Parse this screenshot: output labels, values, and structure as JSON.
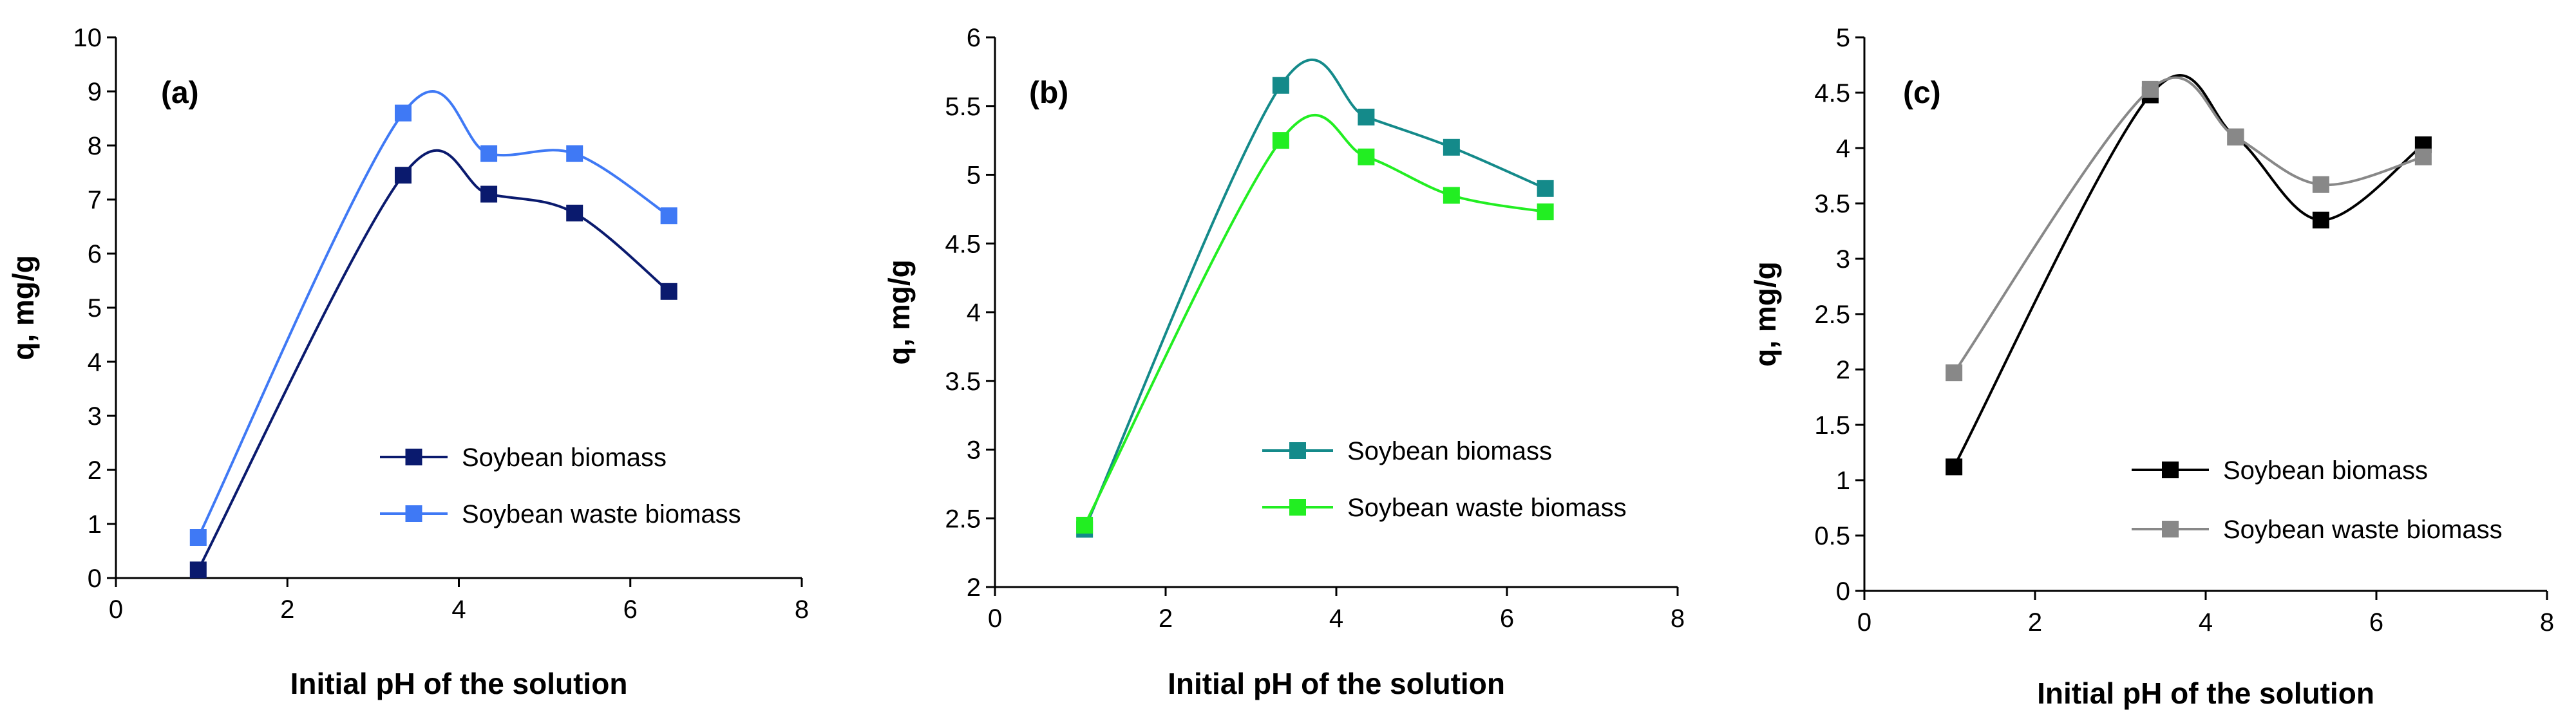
{
  "chart_data": [
    {
      "type": "line",
      "panel_label": "(a)",
      "xlabel": "Initial pH of the solution",
      "ylabel": "q, mg/g",
      "xlim": [
        0,
        8
      ],
      "ylim": [
        0,
        10
      ],
      "x_ticks": [
        0,
        2,
        4,
        6,
        8
      ],
      "y_ticks": [
        0,
        1,
        2,
        3,
        4,
        5,
        6,
        7,
        8,
        9,
        10
      ],
      "grid": false,
      "legend_position": "bottom-right",
      "series": [
        {
          "name": "Soybean biomass",
          "color": "#0a1a6e",
          "x": [
            0.96,
            3.35,
            4.35,
            5.35,
            6.45
          ],
          "y": [
            0.15,
            7.45,
            7.1,
            6.75,
            5.3
          ]
        },
        {
          "name": "Soybean waste biomass",
          "color": "#3f79f5",
          "x": [
            0.96,
            3.35,
            4.35,
            5.35,
            6.45
          ],
          "y": [
            0.75,
            8.6,
            7.85,
            7.85,
            6.7
          ]
        }
      ]
    },
    {
      "type": "line",
      "panel_label": "(b)",
      "xlabel": "Initial pH of the solution",
      "ylabel": "q, mg/g",
      "xlim": [
        0,
        8
      ],
      "ylim": [
        2,
        6
      ],
      "x_ticks": [
        0,
        2,
        4,
        6,
        8
      ],
      "y_ticks": [
        2,
        2.5,
        3,
        3.5,
        4,
        4.5,
        5,
        5.5,
        6
      ],
      "grid": false,
      "legend_position": "center-right",
      "series": [
        {
          "name": "Soybean biomass",
          "color": "#148a8a",
          "x": [
            1.05,
            3.35,
            4.35,
            5.35,
            6.45
          ],
          "y": [
            2.42,
            5.65,
            5.42,
            5.2,
            4.9
          ]
        },
        {
          "name": "Soybean waste biomass",
          "color": "#22ee22",
          "x": [
            1.05,
            3.35,
            4.35,
            5.35,
            6.45
          ],
          "y": [
            2.45,
            5.25,
            5.13,
            4.85,
            4.73
          ]
        }
      ]
    },
    {
      "type": "line",
      "panel_label": "(c)",
      "xlabel": "Initial pH of the solution",
      "ylabel": "q, mg/g",
      "xlim": [
        0,
        8
      ],
      "ylim": [
        0,
        5
      ],
      "x_ticks": [
        0,
        2,
        4,
        6,
        8
      ],
      "y_ticks": [
        0,
        0.5,
        1,
        1.5,
        2,
        2.5,
        3,
        3.5,
        4,
        4.5,
        5
      ],
      "grid": false,
      "legend_position": "bottom-right",
      "series": [
        {
          "name": "Soybean biomass",
          "color": "#000000",
          "x": [
            1.05,
            3.35,
            4.35,
            5.35,
            6.55
          ],
          "y": [
            1.12,
            4.48,
            4.1,
            3.35,
            4.03
          ]
        },
        {
          "name": "Soybean waste biomass",
          "color": "#888888",
          "x": [
            1.05,
            3.35,
            4.35,
            5.35,
            6.55
          ],
          "y": [
            1.97,
            4.53,
            4.1,
            3.67,
            3.92
          ]
        }
      ]
    }
  ]
}
